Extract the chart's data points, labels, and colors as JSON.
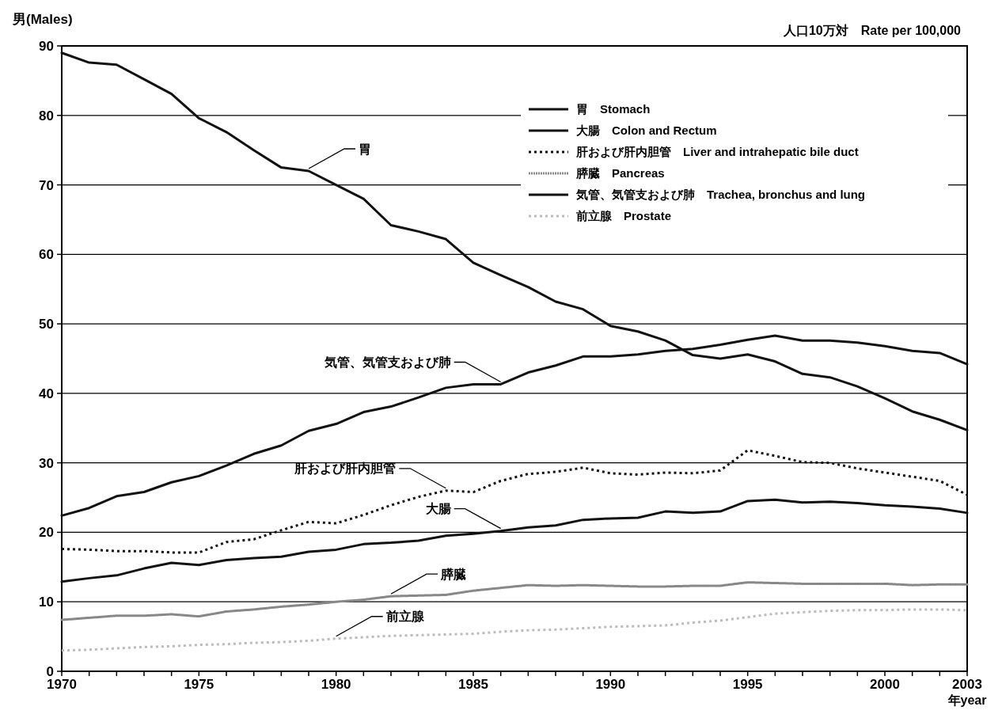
{
  "chart_data": {
    "type": "line",
    "ylabel": "男(Males)",
    "xlabel": "年year",
    "x": [
      1970,
      1971,
      1972,
      1973,
      1974,
      1975,
      1976,
      1977,
      1978,
      1979,
      1980,
      1981,
      1982,
      1983,
      1984,
      1985,
      1986,
      1987,
      1988,
      1989,
      1990,
      1991,
      1992,
      1993,
      1994,
      1995,
      1996,
      1997,
      1998,
      1999,
      2000,
      2001,
      2002,
      2003
    ],
    "xlim": [
      1970,
      2003
    ],
    "xticks": [
      1970,
      {
        "value": 1971,
        "label": null
      },
      {
        "value": 1972,
        "label": null
      },
      {
        "value": 1973,
        "label": null
      },
      {
        "value": 1974,
        "label": null
      },
      1975,
      {
        "value": 1976,
        "label": null
      },
      {
        "value": 1977,
        "label": null
      },
      {
        "value": 1978,
        "label": null
      },
      {
        "value": 1979,
        "label": null
      },
      1980,
      {
        "value": 1981,
        "label": null
      },
      {
        "value": 1982,
        "label": null
      },
      {
        "value": 1983,
        "label": null
      },
      {
        "value": 1984,
        "label": null
      },
      1985,
      {
        "value": 1986,
        "label": null
      },
      {
        "value": 1987,
        "label": null
      },
      {
        "value": 1988,
        "label": null
      },
      {
        "value": 1989,
        "label": null
      },
      1990,
      {
        "value": 1991,
        "label": null
      },
      {
        "value": 1992,
        "label": null
      },
      {
        "value": 1993,
        "label": null
      },
      {
        "value": 1994,
        "label": null
      },
      1995,
      {
        "value": 1996,
        "label": null
      },
      {
        "value": 1997,
        "label": null
      },
      {
        "value": 1998,
        "label": null
      },
      {
        "value": 1999,
        "label": null
      },
      2000,
      {
        "value": 2001,
        "label": null
      },
      {
        "value": 2002,
        "label": null
      },
      2003
    ],
    "ylim": [
      0,
      90
    ],
    "yticks": [
      0,
      10,
      20,
      30,
      40,
      50,
      60,
      70,
      80,
      90
    ],
    "grid": "y",
    "legend": "top right",
    "series": [
      {
        "name": "胃　Stomach",
        "color": "#111111",
        "line_style": "solid",
        "values": [
          89.0,
          87.6,
          87.3,
          85.2,
          83.1,
          79.6,
          77.6,
          75.0,
          72.5,
          72.0,
          70.0,
          68.0,
          64.2,
          63.3,
          62.2,
          58.8,
          57.0,
          55.3,
          53.2,
          52.1,
          49.7,
          48.9,
          47.6,
          45.5,
          45.0,
          45.6,
          44.6,
          42.8,
          42.3,
          41.0,
          39.3,
          37.4,
          36.2,
          34.7
        ]
      },
      {
        "name": "大腸　Colon and Rectum",
        "color": "#111111",
        "line_style": "solid",
        "values": [
          12.9,
          13.4,
          13.8,
          14.8,
          15.6,
          15.3,
          16.0,
          16.3,
          16.5,
          17.2,
          17.5,
          18.3,
          18.5,
          18.8,
          19.5,
          19.8,
          20.2,
          20.7,
          21.0,
          21.8,
          22.0,
          22.1,
          23.0,
          22.8,
          23.0,
          24.5,
          24.7,
          24.3,
          24.4,
          24.2,
          23.9,
          23.7,
          23.4,
          22.8
        ]
      },
      {
        "name": "肝および肝内胆管　Liver and intrahepatic bile duct",
        "color": "#111111",
        "line_style": "dotted",
        "values": [
          17.6,
          17.5,
          17.3,
          17.3,
          17.1,
          17.1,
          18.6,
          19.0,
          20.3,
          21.5,
          21.3,
          22.5,
          23.9,
          25.1,
          26.0,
          25.8,
          27.4,
          28.4,
          28.7,
          29.3,
          28.5,
          28.3,
          28.6,
          28.5,
          28.9,
          31.8,
          31.0,
          30.1,
          30.0,
          29.2,
          28.6,
          28.0,
          27.4,
          25.4
        ]
      },
      {
        "name": "膵臓　Pancreas",
        "color": "#888888",
        "line_style": "dashed",
        "values": [
          7.4,
          7.7,
          8.0,
          8.0,
          8.2,
          7.9,
          8.6,
          8.9,
          9.3,
          9.6,
          10.0,
          10.3,
          10.8,
          10.9,
          11.0,
          11.6,
          12.0,
          12.4,
          12.3,
          12.4,
          12.3,
          12.2,
          12.2,
          12.3,
          12.3,
          12.8,
          12.7,
          12.6,
          12.6,
          12.6,
          12.6,
          12.4,
          12.5,
          12.5
        ]
      },
      {
        "name": "気管、気管支および肺　Trachea, bronchus and lung",
        "color": "#111111",
        "line_style": "solid",
        "values": [
          22.4,
          23.5,
          25.2,
          25.8,
          27.2,
          28.1,
          29.6,
          31.3,
          32.5,
          34.6,
          35.6,
          37.3,
          38.1,
          39.4,
          40.8,
          41.3,
          41.3,
          43.0,
          44.0,
          45.3,
          45.3,
          45.6,
          46.1,
          46.4,
          47.0,
          47.7,
          48.3,
          47.6,
          47.6,
          47.3,
          46.8,
          46.1,
          45.8,
          44.2
        ]
      },
      {
        "name": "前立腺　Prostate",
        "color": "#bbbbbb",
        "line_style": "dotted",
        "values": [
          3.0,
          3.1,
          3.3,
          3.5,
          3.6,
          3.8,
          3.9,
          4.1,
          4.2,
          4.4,
          4.7,
          4.9,
          5.1,
          5.2,
          5.3,
          5.4,
          5.7,
          5.9,
          6.0,
          6.2,
          6.4,
          6.5,
          6.6,
          7.0,
          7.3,
          7.8,
          8.3,
          8.5,
          8.7,
          8.8,
          8.8,
          8.9,
          8.9,
          8.8
        ]
      }
    ],
    "annotations": [
      "人口10万対　Rate per 100,000",
      {
        "text": "胃",
        "x": 1979,
        "y": 72.0
      },
      {
        "text": "気管、気管支および肺",
        "x": 1986,
        "y": 41.3
      },
      {
        "text": "肝および肝内胆管",
        "x": 1984,
        "y": 26.0
      },
      {
        "text": "大腸",
        "x": 1986,
        "y": 20.2
      },
      {
        "text": "膵臓",
        "x": 1982,
        "y": 10.8
      },
      {
        "text": "前立腺",
        "x": 1980,
        "y": 4.7
      }
    ]
  }
}
